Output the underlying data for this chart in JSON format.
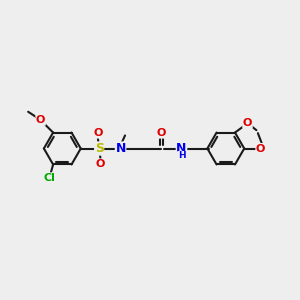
{
  "bg_color": "#eeeeee",
  "bond_color": "#1a1a1a",
  "bond_lw": 1.5,
  "colors": {
    "N": "#0000ee",
    "O": "#dd0000",
    "S": "#bbbb00",
    "Cl": "#00aa00",
    "C": "#1a1a1a"
  },
  "fs": 8.0,
  "fs_large": 9.0,
  "ring_r": 0.62,
  "dbl_off": 0.07,
  "xlim": [
    0,
    10
  ],
  "ylim": [
    0,
    10
  ]
}
